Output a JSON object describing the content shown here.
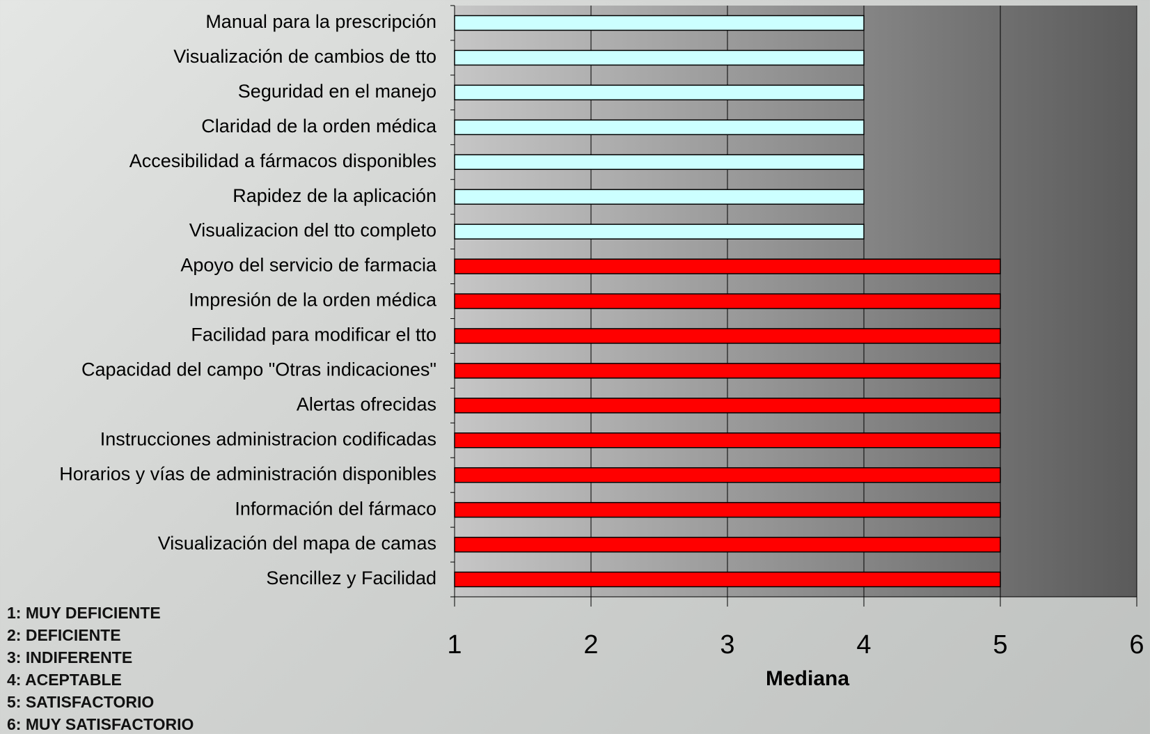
{
  "chart_data": {
    "type": "barh",
    "categories": [
      "Manual para la prescripción",
      "Visualización de cambios de tto",
      "Seguridad en el manejo",
      "Claridad de la orden médica",
      "Accesibilidad a fármacos disponibles",
      "Rapidez de la aplicación",
      "Visualizacion del tto completo",
      "Apoyo del servicio de farmacia",
      "Impresión de la orden médica",
      "Facilidad para modificar el tto",
      "Capacidad del campo \"Otras indicaciones\"",
      "Alertas ofrecidas",
      "Instrucciones administracion codificadas",
      "Horarios y vías de administración disponibles",
      "Información del fármaco",
      "Visualización del mapa de camas",
      "Sencillez y Facilidad"
    ],
    "values": [
      4,
      4,
      4,
      4,
      4,
      4,
      4,
      5,
      5,
      5,
      5,
      5,
      5,
      5,
      5,
      5,
      5
    ],
    "colors": [
      "#ccffff",
      "#ccffff",
      "#ccffff",
      "#ccffff",
      "#ccffff",
      "#ccffff",
      "#ccffff",
      "#ff0000",
      "#ff0000",
      "#ff0000",
      "#ff0000",
      "#ff0000",
      "#ff0000",
      "#ff0000",
      "#ff0000",
      "#ff0000",
      "#ff0000"
    ],
    "xlim": [
      1,
      6
    ],
    "xticks": [
      1,
      2,
      3,
      4,
      5,
      6
    ],
    "xlabel": "Mediana",
    "grid": true,
    "notes": [
      "1: MUY DEFICIENTE",
      "2: DEFICIENTE",
      "3: INDIFERENTE",
      "4: ACEPTABLE",
      "5: SATISFACTORIO",
      "6: MUY SATISFACTORIO"
    ]
  }
}
